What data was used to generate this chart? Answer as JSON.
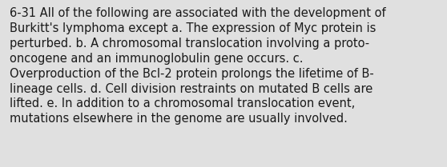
{
  "lines": [
    "6-31 All of the following are associated with the development of",
    "Burkitt's lymphoma except a. The expression of Myc protein is",
    "perturbed. b. A chromosomal translocation involving a proto-",
    "oncogene and an immunoglobulin gene occurs. c.",
    "Overproduction of the Bcl-2 protein prolongs the lifetime of B-",
    "lineage cells. d. Cell division restraints on mutated B cells are",
    "lifted. e. In addition to a chromosomal translocation event,",
    "mutations elsewhere in the genome are usually involved."
  ],
  "background_color": "#e0e0e0",
  "text_color": "#1a1a1a",
  "font_size": 10.5,
  "fig_width": 5.58,
  "fig_height": 2.09,
  "dpi": 100
}
